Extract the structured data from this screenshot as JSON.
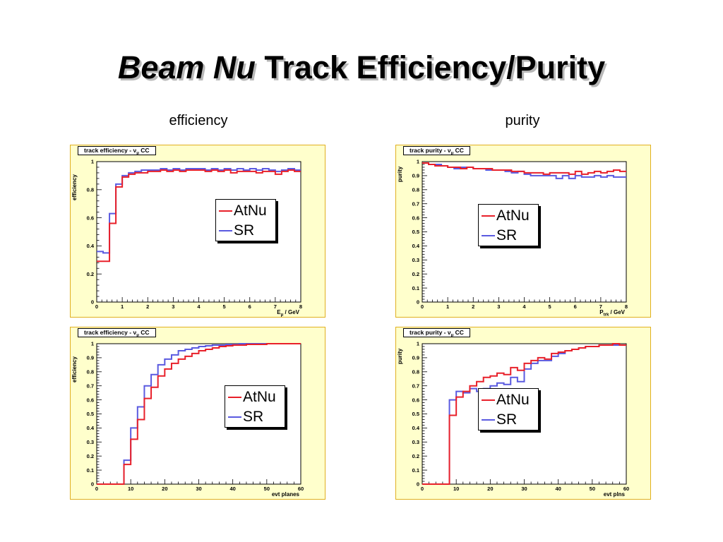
{
  "slide": {
    "title_italic": "Beam Nu",
    "title_rest": " Track Efficiency/Purity",
    "column_efficiency": "efficiency",
    "column_purity": "purity"
  },
  "legend": {
    "entries": [
      "AtNu",
      "SR"
    ]
  },
  "colors": {
    "AtNu": "#e8202a",
    "SR": "#5a5ae0",
    "panel_bg": "#ffffcc",
    "panel_border": "#e0b020"
  },
  "chart_data": [
    {
      "type": "line",
      "title_main": "track efficiency - ν",
      "title_sub": "μ",
      "title_tail": " CC",
      "ylabel": "efficiency",
      "xlabel_main": "E",
      "xlabel_sub": "μ",
      "xlabel_tail": " / GeV",
      "xlim": [
        0,
        8
      ],
      "ylim": [
        0,
        1
      ],
      "xticks": [
        0,
        1,
        2,
        3,
        4,
        5,
        6,
        7,
        8
      ],
      "yticks": [
        0,
        0.2,
        0.4,
        0.6,
        0.8,
        1
      ],
      "ytick_labels": [
        "0",
        "0.2",
        "0.4",
        "0.6",
        "0.8",
        "1"
      ],
      "bin_width": 0.25,
      "series": [
        {
          "name": "AtNu",
          "values": [
            0.29,
            0.29,
            0.56,
            0.82,
            0.89,
            0.91,
            0.92,
            0.92,
            0.93,
            0.93,
            0.94,
            0.93,
            0.94,
            0.93,
            0.94,
            0.94,
            0.94,
            0.93,
            0.94,
            0.93,
            0.94,
            0.92,
            0.93,
            0.93,
            0.93,
            0.92,
            0.93,
            0.93,
            0.91,
            0.93,
            0.94,
            0.93
          ]
        },
        {
          "name": "SR",
          "values": [
            0.36,
            0.35,
            0.63,
            0.84,
            0.9,
            0.92,
            0.93,
            0.94,
            0.94,
            0.94,
            0.95,
            0.94,
            0.95,
            0.94,
            0.95,
            0.95,
            0.95,
            0.94,
            0.95,
            0.94,
            0.95,
            0.94,
            0.95,
            0.94,
            0.95,
            0.94,
            0.95,
            0.94,
            0.93,
            0.94,
            0.95,
            0.94
          ]
        }
      ]
    },
    {
      "type": "line",
      "title_main": "track purity - ν",
      "title_sub": "μ",
      "title_tail": " CC",
      "ylabel": "purity",
      "xlabel_main": "P",
      "xlabel_sub": "trk",
      "xlabel_tail": " / GeV",
      "xlim": [
        0,
        8
      ],
      "ylim": [
        0,
        1
      ],
      "xticks": [
        0,
        1,
        2,
        3,
        4,
        5,
        6,
        7,
        8
      ],
      "yticks": [
        0,
        0.1,
        0.2,
        0.3,
        0.4,
        0.5,
        0.6,
        0.7,
        0.8,
        0.9,
        1
      ],
      "ytick_labels": [
        "0",
        "0.1",
        "0.2",
        "0.3",
        "0.4",
        "0.5",
        "0.6",
        "0.7",
        "0.8",
        "0.9",
        "1"
      ],
      "bin_width": 0.25,
      "series": [
        {
          "name": "AtNu",
          "values": [
            0.99,
            0.98,
            0.97,
            0.97,
            0.96,
            0.96,
            0.95,
            0.96,
            0.95,
            0.95,
            0.95,
            0.94,
            0.94,
            0.94,
            0.93,
            0.93,
            0.92,
            0.92,
            0.92,
            0.91,
            0.92,
            0.92,
            0.92,
            0.91,
            0.93,
            0.91,
            0.92,
            0.93,
            0.92,
            0.93,
            0.94,
            0.93
          ]
        },
        {
          "name": "SR",
          "values": [
            0.99,
            0.98,
            0.98,
            0.97,
            0.96,
            0.95,
            0.96,
            0.96,
            0.95,
            0.95,
            0.94,
            0.94,
            0.94,
            0.93,
            0.92,
            0.93,
            0.91,
            0.9,
            0.9,
            0.9,
            0.9,
            0.88,
            0.9,
            0.88,
            0.9,
            0.89,
            0.89,
            0.9,
            0.89,
            0.9,
            0.89,
            0.89
          ]
        }
      ]
    },
    {
      "type": "line",
      "title_main": "track efficiency - ν",
      "title_sub": "μ",
      "title_tail": " CC",
      "ylabel": "efficiency",
      "xlabel_main": "evt planes",
      "xlabel_sub": "",
      "xlabel_tail": "",
      "xlim": [
        0,
        60
      ],
      "ylim": [
        0,
        1
      ],
      "xticks": [
        0,
        10,
        20,
        30,
        40,
        50,
        60
      ],
      "yticks": [
        0,
        0.1,
        0.2,
        0.3,
        0.4,
        0.5,
        0.6,
        0.7,
        0.8,
        0.9,
        1
      ],
      "ytick_labels": [
        "0",
        "0.1",
        "0.2",
        "0.3",
        "0.4",
        "0.5",
        "0.6",
        "0.7",
        "0.8",
        "0.9",
        "1"
      ],
      "bin_width": 2,
      "series": [
        {
          "name": "AtNu",
          "values": [
            0,
            0,
            0,
            0,
            0.14,
            0.32,
            0.46,
            0.61,
            0.69,
            0.77,
            0.82,
            0.86,
            0.89,
            0.91,
            0.93,
            0.95,
            0.96,
            0.97,
            0.98,
            0.985,
            0.99,
            0.99,
            0.995,
            0.995,
            0.995,
            1.0,
            1.0,
            1.0,
            1.0,
            1.0
          ]
        },
        {
          "name": "SR",
          "values": [
            0,
            0,
            0,
            0,
            0.17,
            0.4,
            0.55,
            0.7,
            0.78,
            0.85,
            0.89,
            0.92,
            0.95,
            0.96,
            0.97,
            0.98,
            0.985,
            0.99,
            0.99,
            0.995,
            0.995,
            1.0,
            1.0,
            1.0,
            1.0,
            1.0,
            1.0,
            1.0,
            1.0,
            1.0
          ]
        }
      ]
    },
    {
      "type": "line",
      "title_main": "track purity - ν",
      "title_sub": "μ",
      "title_tail": " CC",
      "ylabel": "purity",
      "xlabel_main": "evt plns",
      "xlabel_sub": "",
      "xlabel_tail": "",
      "xlim": [
        0,
        60
      ],
      "ylim": [
        0,
        1
      ],
      "xticks": [
        0,
        10,
        20,
        30,
        40,
        50,
        60
      ],
      "yticks": [
        0,
        0.1,
        0.2,
        0.3,
        0.4,
        0.5,
        0.6,
        0.7,
        0.8,
        0.9,
        1
      ],
      "ytick_labels": [
        "0",
        "0.1",
        "0.2",
        "0.3",
        "0.4",
        "0.5",
        "0.6",
        "0.7",
        "0.8",
        "0.9",
        "1"
      ],
      "bin_width": 2,
      "series": [
        {
          "name": "AtNu",
          "values": [
            0,
            0,
            0,
            0,
            0.49,
            0.62,
            0.66,
            0.7,
            0.73,
            0.76,
            0.77,
            0.79,
            0.78,
            0.83,
            0.81,
            0.86,
            0.88,
            0.9,
            0.89,
            0.93,
            0.94,
            0.95,
            0.96,
            0.97,
            0.98,
            0.98,
            0.99,
            0.99,
            1.0,
            0.99
          ]
        },
        {
          "name": "SR",
          "values": [
            0,
            0,
            0,
            0,
            0.6,
            0.66,
            0.65,
            0.68,
            0.66,
            0.68,
            0.7,
            0.72,
            0.71,
            0.76,
            0.73,
            0.82,
            0.86,
            0.88,
            0.88,
            0.91,
            0.93,
            0.95,
            0.96,
            0.97,
            0.98,
            0.98,
            0.99,
            0.99,
            0.99,
            0.99
          ]
        }
      ]
    }
  ]
}
